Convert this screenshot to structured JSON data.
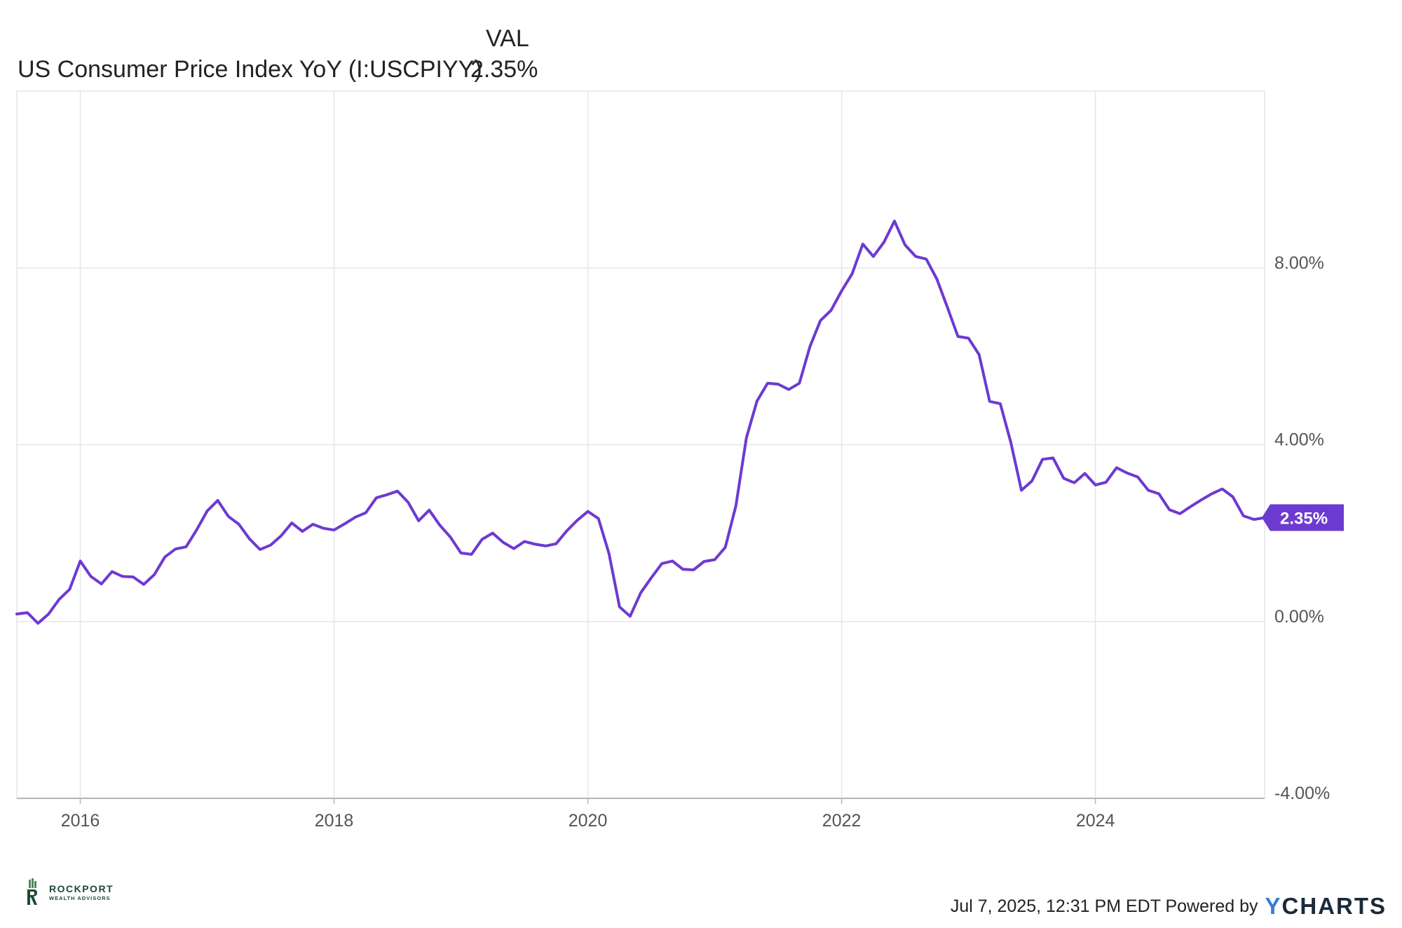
{
  "legend": {
    "column_header": "VAL",
    "series_name": "US Consumer Price Index YoY (I:USCPIYY)",
    "series_value": "2.35%"
  },
  "footer": {
    "logo_brand": "ROCKPORT",
    "logo_sub": "WEALTH ADVISORS",
    "timestamp": "Jul 7, 2025, 12:31 PM EDT Powered by",
    "ycharts_y": "Y",
    "ycharts_rest": "CHARTS"
  },
  "colors": {
    "series": "#6d3ad1",
    "grid": "#e6e6e6",
    "tick_text": "#555555"
  },
  "chart_data": {
    "type": "line",
    "title": "",
    "xlabel": "",
    "ylabel": "",
    "x_ticks": [
      "2016",
      "2018",
      "2020",
      "2022",
      "2024"
    ],
    "y_ticks": [
      "8.00%",
      "4.00%",
      "0.00%",
      "-4.00%"
    ],
    "y_tick_values": [
      8,
      4,
      0,
      -4
    ],
    "ylim": [
      -4,
      12
    ],
    "xlim": [
      "2015-07",
      "2025-05"
    ],
    "grid": true,
    "y_axis_position": "right",
    "last_value_label": "2.35%",
    "series": [
      {
        "name": "US Consumer Price Index YoY (I:USCPIYY)",
        "x": [
          "2015-07",
          "2015-08",
          "2015-09",
          "2015-10",
          "2015-11",
          "2015-12",
          "2016-01",
          "2016-02",
          "2016-03",
          "2016-04",
          "2016-05",
          "2016-06",
          "2016-07",
          "2016-08",
          "2016-09",
          "2016-10",
          "2016-11",
          "2016-12",
          "2017-01",
          "2017-02",
          "2017-03",
          "2017-04",
          "2017-05",
          "2017-06",
          "2017-07",
          "2017-08",
          "2017-09",
          "2017-10",
          "2017-11",
          "2017-12",
          "2018-01",
          "2018-02",
          "2018-03",
          "2018-04",
          "2018-05",
          "2018-06",
          "2018-07",
          "2018-08",
          "2018-09",
          "2018-10",
          "2018-11",
          "2018-12",
          "2019-01",
          "2019-02",
          "2019-03",
          "2019-04",
          "2019-05",
          "2019-06",
          "2019-07",
          "2019-08",
          "2019-09",
          "2019-10",
          "2019-11",
          "2019-12",
          "2020-01",
          "2020-02",
          "2020-03",
          "2020-04",
          "2020-05",
          "2020-06",
          "2020-07",
          "2020-08",
          "2020-09",
          "2020-10",
          "2020-11",
          "2020-12",
          "2021-01",
          "2021-02",
          "2021-03",
          "2021-04",
          "2021-05",
          "2021-06",
          "2021-07",
          "2021-08",
          "2021-09",
          "2021-10",
          "2021-11",
          "2021-12",
          "2022-01",
          "2022-02",
          "2022-03",
          "2022-04",
          "2022-05",
          "2022-06",
          "2022-07",
          "2022-08",
          "2022-09",
          "2022-10",
          "2022-11",
          "2022-12",
          "2023-01",
          "2023-02",
          "2023-03",
          "2023-04",
          "2023-05",
          "2023-06",
          "2023-07",
          "2023-08",
          "2023-09",
          "2023-10",
          "2023-11",
          "2023-12",
          "2024-01",
          "2024-02",
          "2024-03",
          "2024-04",
          "2024-05",
          "2024-06",
          "2024-07",
          "2024-08",
          "2024-09",
          "2024-10",
          "2024-11",
          "2024-12",
          "2025-01",
          "2025-02",
          "2025-03",
          "2025-04",
          "2025-05"
        ],
        "values": [
          0.17,
          0.2,
          -0.04,
          0.17,
          0.5,
          0.73,
          1.37,
          1.02,
          0.85,
          1.13,
          1.02,
          1.01,
          0.84,
          1.06,
          1.46,
          1.64,
          1.69,
          2.07,
          2.5,
          2.74,
          2.38,
          2.2,
          1.87,
          1.63,
          1.73,
          1.94,
          2.23,
          2.04,
          2.2,
          2.11,
          2.07,
          2.21,
          2.36,
          2.46,
          2.8,
          2.87,
          2.95,
          2.7,
          2.28,
          2.52,
          2.18,
          1.91,
          1.55,
          1.52,
          1.86,
          2.0,
          1.79,
          1.65,
          1.81,
          1.75,
          1.71,
          1.76,
          2.05,
          2.29,
          2.49,
          2.33,
          1.54,
          0.33,
          0.12,
          0.65,
          0.99,
          1.31,
          1.37,
          1.18,
          1.17,
          1.36,
          1.4,
          1.68,
          2.62,
          4.16,
          4.99,
          5.39,
          5.37,
          5.25,
          5.39,
          6.22,
          6.81,
          7.04,
          7.48,
          7.87,
          8.54,
          8.26,
          8.58,
          9.06,
          8.52,
          8.26,
          8.2,
          7.75,
          7.11,
          6.45,
          6.41,
          6.04,
          4.98,
          4.93,
          4.05,
          2.97,
          3.18,
          3.67,
          3.7,
          3.24,
          3.14,
          3.35,
          3.09,
          3.15,
          3.48,
          3.36,
          3.27,
          2.97,
          2.89,
          2.53,
          2.44,
          2.6,
          2.75,
          2.89,
          3.0,
          2.82,
          2.39,
          2.31,
          2.35
        ]
      }
    ]
  }
}
